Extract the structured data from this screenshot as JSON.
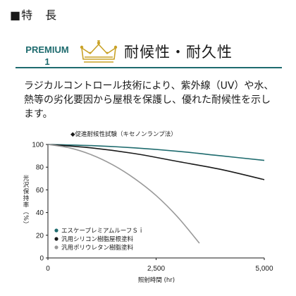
{
  "header": {
    "section_title": "■特　長",
    "premium_line1": "PREMIUM",
    "premium_line2": "1",
    "feature_title": "耐候性・耐久性"
  },
  "colors": {
    "accent_teal": "#1e6b6e",
    "crown_gold": "#c9a227"
  },
  "icons": [
    "crown-icon"
  ],
  "description": "ラジカルコントロール技術により、紫外線（UV）や水、熱等の劣化要因から屋根を保護し、優れた耐候性を示します。",
  "chart_data": {
    "type": "line",
    "title": "◆促進耐候性試験（キセノンランプ法）",
    "xlabel": "照射時間 (hr)",
    "ylabel": "光沢保持率（%）",
    "xlim": [
      0,
      5000
    ],
    "ylim": [
      0,
      100
    ],
    "xticks": [
      "0",
      "2,500",
      "5,000"
    ],
    "yticks": [
      "0",
      "20",
      "40",
      "60",
      "80",
      "100"
    ],
    "grid": false,
    "legend_position": "bottom-left",
    "series": [
      {
        "name": "エスケープレミアムルーフＳｉ",
        "color": "#1e6b6e",
        "x": [
          0,
          1000,
          2000,
          3000,
          4000,
          5000
        ],
        "y": [
          100,
          99,
          97,
          94,
          90,
          86
        ]
      },
      {
        "name": "汎用シリコン樹脂屋根塗料",
        "color": "#1a1a1a",
        "x": [
          0,
          1000,
          2000,
          3000,
          4000,
          5000
        ],
        "y": [
          100,
          97,
          92,
          85,
          78,
          69
        ]
      },
      {
        "name": "汎用ポリウレタン樹脂塗料",
        "color": "#999999",
        "x": [
          0,
          500,
          1000,
          1500,
          2000,
          2500,
          3000,
          3500
        ],
        "y": [
          100,
          97,
          91,
          82,
          70,
          55,
          36,
          13
        ]
      }
    ]
  }
}
